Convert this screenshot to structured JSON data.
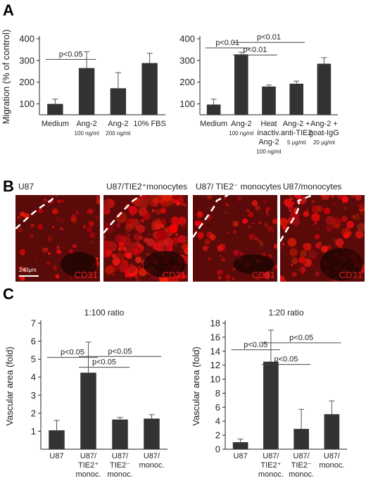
{
  "panels": {
    "A": "A",
    "B": "B",
    "C": "C"
  },
  "colors": {
    "bar": "#333333",
    "red": "#e02020",
    "tissue": "#5a0a08"
  },
  "chart_data": [
    {
      "type": "bar",
      "ylabel": "Migration (% of control)",
      "ylim": [
        50,
        400
      ],
      "yticks": [
        "100",
        "200",
        "300",
        "400"
      ],
      "categories": [
        [
          "Medium"
        ],
        [
          "Ang-2",
          "100 ng/ml"
        ],
        [
          "Ang-2",
          "200 ng/ml"
        ],
        [
          "10% FBS"
        ]
      ],
      "values": [
        100,
        265,
        172,
        288
      ],
      "errors": [
        22,
        75,
        72,
        45
      ],
      "annotations": [
        {
          "text": "p<0.05",
          "from": 0,
          "to": 1,
          "level": 305
        }
      ]
    },
    {
      "type": "bar",
      "ylim": [
        50,
        400
      ],
      "yticks": [
        "100",
        "200",
        "300",
        "400"
      ],
      "categories": [
        [
          "Medium"
        ],
        [
          "Ang-2",
          "100 ng/ml"
        ],
        [
          "Heat",
          "inactiv.",
          "Ang-2",
          "100 ng/ml"
        ],
        [
          "Ang-2 +",
          "anti-TIE2",
          "5 µg/ml"
        ],
        [
          "Ang-2 +",
          "goat-IgG",
          "20 µg/ml"
        ]
      ],
      "values": [
        97,
        328,
        180,
        193,
        285
      ],
      "errors": [
        25,
        10,
        7,
        12,
        28
      ],
      "annotations": [
        {
          "text": "p<0.01",
          "from": 0,
          "to": 1,
          "level": 358
        },
        {
          "text": "p<0.01",
          "from": 1,
          "to": 2,
          "level": 325
        },
        {
          "text": "p<0.01",
          "from": 1,
          "to": 3,
          "level": 383
        }
      ]
    },
    {
      "type": "bar",
      "title": "1:100 ratio",
      "ylabel": "Vascular area (fold)",
      "ylim": [
        0,
        7
      ],
      "yticks": [
        "1",
        "2",
        "3",
        "4",
        "5",
        "6",
        "7"
      ],
      "categories": [
        [
          "U87"
        ],
        [
          "U87/",
          "TIE2⁺",
          "monoc."
        ],
        [
          "U87/",
          "TIE2⁻",
          "monoc."
        ],
        [
          "U87/",
          "monoc."
        ]
      ],
      "values": [
        1.05,
        4.25,
        1.65,
        1.7
      ],
      "errors": [
        0.55,
        1.7,
        0.12,
        0.22
      ],
      "annotations": [
        {
          "text": "p<0.05",
          "from": 0,
          "to": 1,
          "level": 5.1
        },
        {
          "text": "p<0.05",
          "from": 1,
          "to": 3,
          "level": 5.15
        },
        {
          "text": "p<0.05",
          "from": 1,
          "to": 2,
          "level": 4.55
        }
      ]
    },
    {
      "type": "bar",
      "title": "1:20 ratio",
      "ylabel": "Vascular area (fold)",
      "ylim": [
        0,
        18
      ],
      "yticks": [
        "0",
        "2",
        "4",
        "6",
        "8",
        "10",
        "12",
        "14",
        "16",
        "18"
      ],
      "categories": [
        [
          "U87"
        ],
        [
          "U87/",
          "TIE2⁺",
          "monoc."
        ],
        [
          "U87/",
          "TIE2⁻",
          "monoc."
        ],
        [
          "U87/",
          "monoc."
        ]
      ],
      "values": [
        1.0,
        12.5,
        2.9,
        5.0
      ],
      "errors": [
        0.45,
        4.5,
        2.8,
        1.9
      ],
      "annotations": [
        {
          "text": "p<0.05",
          "from": 0,
          "to": 1,
          "level": 14.2
        },
        {
          "text": "p<0.05",
          "from": 1,
          "to": 3,
          "level": 15.2
        },
        {
          "text": "p<0.05",
          "from": 1,
          "to": 2,
          "level": 12.1
        }
      ]
    }
  ],
  "micrographs": [
    {
      "label": "U87",
      "stain": "CD31",
      "scalebar": "240μm",
      "density": 0.25
    },
    {
      "label": "U87/TIE2⁺monocytes",
      "stain": "CD31",
      "density": 0.9
    },
    {
      "label": "U87/ TIE2⁻ monocytes",
      "stain": "CD31",
      "density": 0.3
    },
    {
      "label": "U87/monocytes",
      "stain": "CD31",
      "density": 0.6
    }
  ]
}
